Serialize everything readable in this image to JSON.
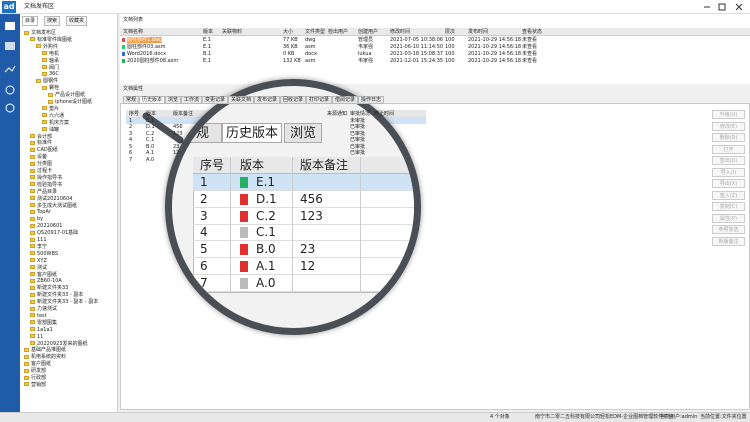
{
  "title_bar": {
    "logo": "ad",
    "title": "文档发布区"
  },
  "tree_panel": {
    "tabs": [
      "目录",
      "搜索",
      "收藏夹"
    ],
    "items": [
      {
        "label": "文档发布区",
        "children": [
          {
            "label": "标准零件库图纸",
            "children": [
              {
                "label": "外购件",
                "children": [
                  {
                    "label": "电机"
                  },
                  {
                    "label": "轴承"
                  },
                  {
                    "label": "阀门"
                  },
                  {
                    "label": "36C"
                  }
                ]
              },
              {
                "label": "圆钢件",
                "children": [
                  {
                    "label": "螺栓",
                    "children": [
                      {
                        "label": "产品设计图纸"
                      },
                      {
                        "label": "iphone设计图纸"
                      }
                    ]
                  },
                  {
                    "label": "垫片"
                  },
                  {
                    "label": "六六通"
                  },
                  {
                    "label": "机床方案"
                  },
                  {
                    "label": "油罐"
                  }
                ]
              }
            ]
          },
          {
            "label": "会计部"
          },
          {
            "label": "标准件"
          },
          {
            "label": "CAD图纸"
          },
          {
            "label": "设备"
          },
          {
            "label": "分类图"
          },
          {
            "label": "过程卡"
          },
          {
            "label": "操作指导书"
          },
          {
            "label": "检验指导书"
          },
          {
            "label": "产品目录"
          },
          {
            "label": "测试20210604"
          },
          {
            "label": "多生成大测试图纸"
          },
          {
            "label": "TopAr"
          },
          {
            "label": "by"
          },
          {
            "label": "20210601"
          },
          {
            "label": "QS20917-01基础"
          },
          {
            "label": "111"
          },
          {
            "label": "李宁"
          },
          {
            "label": "500WBS"
          },
          {
            "label": "XYZ"
          },
          {
            "label": "测试"
          },
          {
            "label": "客户图纸"
          },
          {
            "label": "ZB60-10A"
          },
          {
            "label": "新建文件夹33"
          },
          {
            "label": "新建文件夹33 - 副本"
          },
          {
            "label": "新建文件夹33 - 副本 - 副本"
          },
          {
            "label": "力速测试"
          },
          {
            "label": "test"
          },
          {
            "label": "零部图集"
          },
          {
            "label": "1a1a1"
          },
          {
            "label": "11"
          },
          {
            "label": "20220923发来的图纸"
          }
        ]
      },
      {
        "label": "基础产品堆图纸"
      },
      {
        "label": "机电系统的资料"
      },
      {
        "label": "客户图纸"
      },
      {
        "label": "研发部"
      },
      {
        "label": "行政部"
      },
      {
        "label": "营销部"
      }
    ]
  },
  "doc_list": {
    "title": "文档列表",
    "columns": [
      "文档名称",
      "版本",
      "关联物料",
      "大小",
      "文件类型",
      "检出用户",
      "创建用户",
      "修改时间",
      "层次",
      "发布时间",
      "查看状态"
    ],
    "rows": [
      {
        "name": "圆柱部件1.dwg",
        "version": "E.1",
        "size": "77 KB",
        "type": "dwg",
        "creator": "管理员",
        "modified": "2021-07-05 10:38:06",
        "level": "100",
        "published": "2021-10-29 14:56:18",
        "status": "未查看"
      },
      {
        "name": "圆柱部件03.asm",
        "version": "E.1",
        "size": "36 KB",
        "type": "asm",
        "creator": "韦家强",
        "modified": "2021-06-10 11:14:50",
        "level": "100",
        "published": "2021-10-29 14:56:18",
        "status": "未查看"
      },
      {
        "name": "Word2016.docx",
        "version": "B.1",
        "size": "0 KB",
        "type": "docx",
        "creator": "lukua",
        "modified": "2021-03-18 15:08:37",
        "level": "100",
        "published": "2021-10-29 14:56:18",
        "status": "未查看"
      },
      {
        "name": "2020圆柱部件08.asm",
        "version": "E.1",
        "size": "132 KB",
        "type": "asm",
        "creator": "韦家强",
        "modified": "2021-12-01 15:24:35",
        "level": "100",
        "published": "2021-10-29 14:56:18",
        "status": "未查看"
      }
    ]
  },
  "properties": {
    "title": "文档属性",
    "tabs": [
      "常规",
      "历史版本",
      "浏览",
      "工作流",
      "变更记录",
      "关联文档",
      "发布记录",
      "回收记录",
      "打印记录",
      "借阅记录",
      "操作日志"
    ],
    "history": {
      "columns": [
        "序号",
        "版本",
        "版本备注",
        "来源通知",
        "审批情况",
        "终止时间"
      ],
      "rows": [
        {
          "no": "1",
          "version": "E.1",
          "approval": "未审批"
        },
        {
          "no": "2",
          "version": "D.1",
          "note": "456",
          "approval": "已审批"
        },
        {
          "no": "3",
          "version": "C.2",
          "note": "123",
          "approval": "已审批"
        },
        {
          "no": "4",
          "version": "C.1",
          "approval": "已审批"
        },
        {
          "no": "5",
          "version": "B.0",
          "note": "23",
          "approval": "已审批"
        },
        {
          "no": "6",
          "version": "A.1",
          "note": "12",
          "approval": "已审批"
        },
        {
          "no": "7",
          "version": "A.0"
        }
      ]
    },
    "buttons": [
      "升级(U)",
      "修改(E)",
      "删除(D)",
      "打开",
      "签出(O)",
      "导入(I)",
      "导出(X)",
      "签入(Z)",
      "复制(C)",
      "属性(P)",
      "参照复选",
      "新版备注"
    ]
  },
  "status_bar": {
    "count": "4 个对象",
    "company": "南宁市二零二五科技有限公司轻松EDM-企业图档管理软件平台",
    "user": "当前用户:admin",
    "location": "当前位置:文件夹位置"
  }
}
